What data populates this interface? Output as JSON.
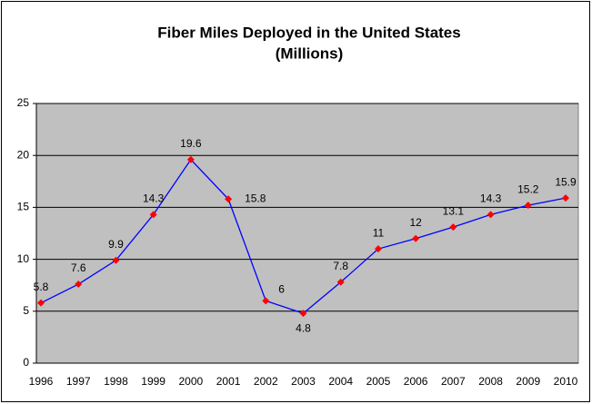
{
  "chart_data": {
    "type": "line",
    "title": [
      "Fiber Miles Deployed in the United States",
      "(Millions)"
    ],
    "categories": [
      "1996",
      "1997",
      "1998",
      "1999",
      "2000",
      "2001",
      "2002",
      "2003",
      "2004",
      "2005",
      "2006",
      "2007",
      "2008",
      "2009",
      "2010"
    ],
    "series": [
      {
        "values": [
          5.8,
          7.6,
          9.9,
          14.3,
          19.6,
          15.8,
          6,
          4.8,
          7.8,
          11,
          12,
          13.1,
          14.3,
          15.2,
          15.9
        ],
        "color": "#0000ff",
        "marker_color": "#ff0000"
      }
    ],
    "ylim": [
      0,
      25
    ],
    "yticks": [
      0,
      5,
      10,
      15,
      20,
      25
    ],
    "grid": true,
    "plot_background": "#c0c0c0"
  }
}
